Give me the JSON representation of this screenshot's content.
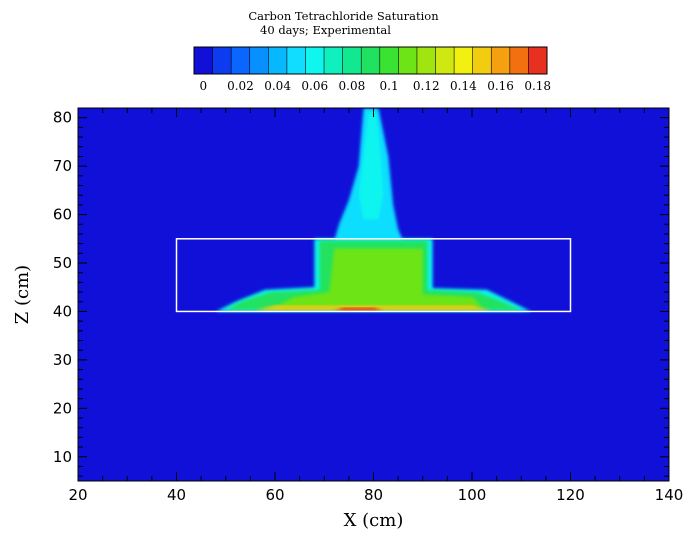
{
  "chart_data": {
    "type": "heatmap",
    "title": "Carbon Tetrachloride Saturation",
    "subtitle": "40 days; Experimental",
    "xlabel": "X (cm)",
    "ylabel": "Z (cm)",
    "xlim": [
      20,
      140
    ],
    "ylim": [
      5,
      82
    ],
    "x_ticks": [
      20,
      40,
      60,
      80,
      100,
      120,
      140
    ],
    "y_ticks": [
      10,
      20,
      30,
      40,
      50,
      60,
      70,
      80
    ],
    "colorbar": {
      "min": 0,
      "max": 0.19,
      "levels": 19,
      "labels": [
        "0",
        "0.02",
        "0.04",
        "0.06",
        "0.08",
        "0.1",
        "0.12",
        "0.14",
        "0.16",
        "0.18"
      ],
      "colors": [
        "#1010d8",
        "#0d3cf0",
        "#0a66ff",
        "#0890ff",
        "#08b8ff",
        "#10ddff",
        "#10f5ee",
        "#10f0bf",
        "#12e890",
        "#20e260",
        "#3ae232",
        "#6de416",
        "#a0e410",
        "#cfe812",
        "#f2f010",
        "#f2cc10",
        "#f5a010",
        "#f27010",
        "#e83020"
      ]
    },
    "background_saturation": 0,
    "box_outline": {
      "x": [
        40,
        120
      ],
      "z": [
        40,
        55
      ]
    },
    "regions": [
      {
        "name": "vertical plume",
        "saturation": 0.055,
        "polygon": [
          [
            78,
            82
          ],
          [
            81,
            82
          ],
          [
            83,
            72
          ],
          [
            84,
            62
          ],
          [
            85,
            57
          ],
          [
            86,
            54.5
          ],
          [
            72,
            54.5
          ],
          [
            73,
            58
          ],
          [
            75,
            63
          ],
          [
            77,
            70
          ]
        ]
      },
      {
        "name": "plume core",
        "saturation": 0.065,
        "polygon": [
          [
            79,
            81
          ],
          [
            80.5,
            81
          ],
          [
            81.5,
            72
          ],
          [
            82,
            64
          ],
          [
            81,
            59
          ],
          [
            78,
            59
          ],
          [
            77,
            64
          ],
          [
            78,
            72
          ]
        ]
      },
      {
        "name": "spread zone outer",
        "saturation": 0.06,
        "polygon": [
          [
            48,
            40
          ],
          [
            112,
            40
          ],
          [
            108,
            42
          ],
          [
            103,
            44.5
          ],
          [
            92,
            44.8
          ],
          [
            92,
            55
          ],
          [
            68,
            55
          ],
          [
            68,
            45
          ],
          [
            58,
            44.5
          ],
          [
            52,
            42
          ]
        ]
      },
      {
        "name": "spread zone main",
        "saturation": 0.095,
        "polygon": [
          [
            50,
            40.3
          ],
          [
            110,
            40.3
          ],
          [
            105,
            42.5
          ],
          [
            101,
            44
          ],
          [
            91,
            44.4
          ],
          [
            91,
            54.6
          ],
          [
            69,
            54.6
          ],
          [
            69,
            44.5
          ],
          [
            59,
            44
          ],
          [
            53,
            42
          ]
        ]
      },
      {
        "name": "spread zone mid",
        "saturation": 0.11,
        "polygon": [
          [
            60,
            41
          ],
          [
            102,
            41
          ],
          [
            100,
            43
          ],
          [
            90,
            43.5
          ],
          [
            90,
            53
          ],
          [
            72,
            53
          ],
          [
            71,
            44
          ],
          [
            64,
            43
          ]
        ]
      },
      {
        "name": "bottom accumulation",
        "saturation": 0.15,
        "polygon": [
          [
            56,
            40.2
          ],
          [
            104,
            40.2
          ],
          [
            100,
            41.3
          ],
          [
            60,
            41.3
          ]
        ]
      },
      {
        "name": "bottom peak",
        "saturation": 0.18,
        "polygon": [
          [
            72,
            40.1
          ],
          [
            82,
            40.1
          ],
          [
            80,
            40.8
          ],
          [
            74,
            40.8
          ]
        ]
      }
    ]
  }
}
